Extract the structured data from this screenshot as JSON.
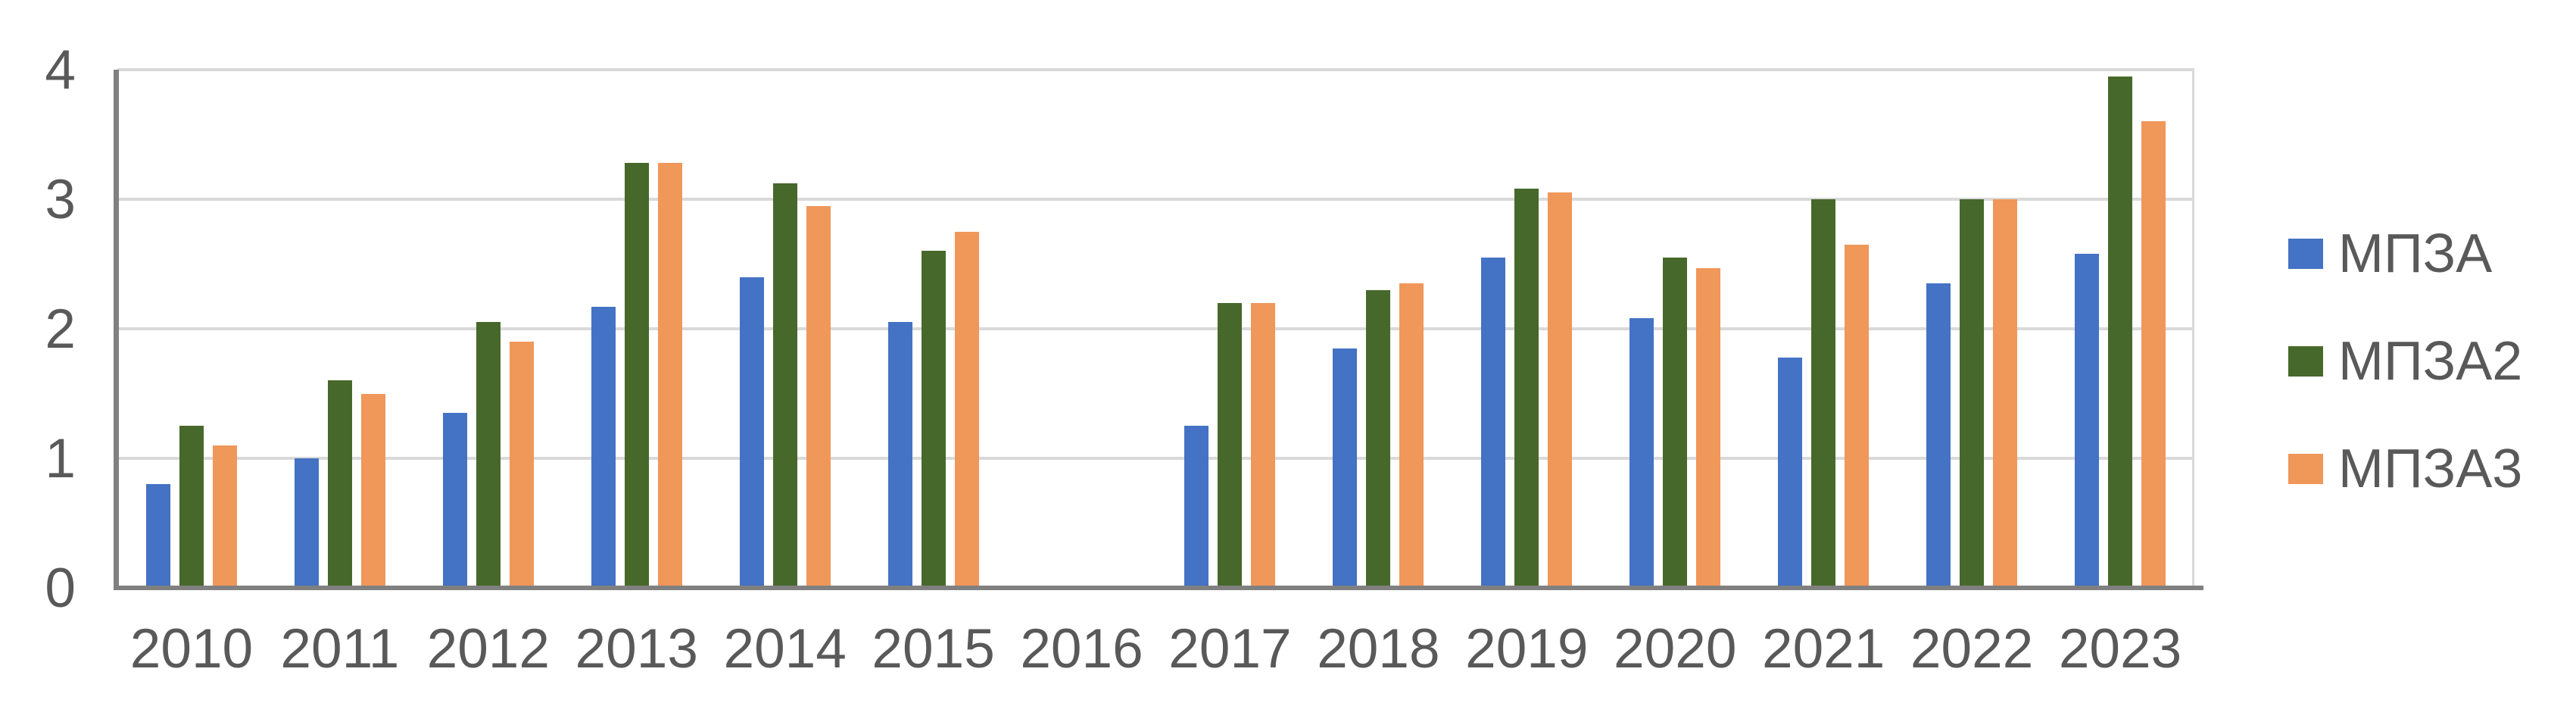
{
  "page": {
    "background": "#FFFFFF"
  },
  "chart_data": {
    "type": "bar",
    "title": "",
    "xlabel": "",
    "ylabel": "",
    "categories": [
      "2010",
      "2011",
      "2012",
      "2013",
      "2014",
      "2015",
      "2016",
      "2017",
      "2018",
      "2019",
      "2020",
      "2021",
      "2022",
      "2023"
    ],
    "series": [
      {
        "name": "МПЗА",
        "color": "#4472C4",
        "values": [
          0.8,
          1.0,
          1.35,
          2.17,
          2.4,
          2.05,
          null,
          1.25,
          1.85,
          2.55,
          2.08,
          1.78,
          2.35,
          2.58
        ]
      },
      {
        "name": "МПЗА2",
        "color": "#47682B",
        "values": [
          1.25,
          1.6,
          2.05,
          3.28,
          3.12,
          2.6,
          null,
          2.2,
          2.3,
          3.08,
          2.55,
          3.0,
          3.0,
          3.95
        ]
      },
      {
        "name": "МПЗА3",
        "color": "#F0975A",
        "values": [
          1.1,
          1.5,
          1.9,
          3.28,
          2.95,
          2.75,
          null,
          2.2,
          2.35,
          3.05,
          2.47,
          2.65,
          3.0,
          3.6
        ]
      }
    ],
    "ylim": [
      0,
      4
    ],
    "yticks": [
      "0",
      "1",
      "2",
      "3",
      "4"
    ],
    "grid": true,
    "legend_position": "right",
    "colors": {
      "gridline": "#D9D9D9",
      "axis": "#808080",
      "tick_text": "#595959"
    }
  }
}
